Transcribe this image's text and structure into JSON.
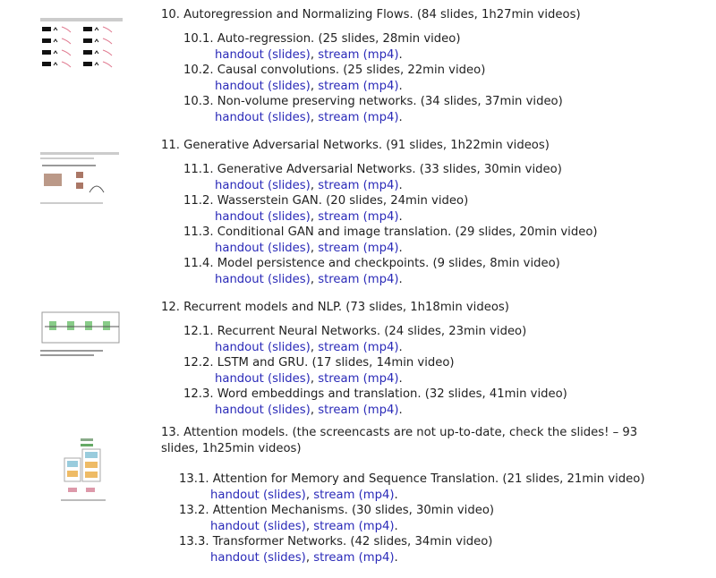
{
  "link_labels": {
    "handout": "handout (slides)",
    "stream": "stream (mp4)",
    "sep": ", ",
    "end": "."
  },
  "link_color": "#2a2ab8",
  "sections": [
    {
      "title": "10. Autoregression and Normalizing Flows. (84 slides, 1h27min videos)",
      "thumbnail": "autoregression-figure",
      "items": [
        {
          "label": "10.1. Auto-regression. (25 slides, 28min video)"
        },
        {
          "label": "10.2. Causal convolutions. (25 slides, 22min video)"
        },
        {
          "label": "10.3. Non-volume preserving networks. (34 slides, 37min video)"
        }
      ]
    },
    {
      "title": "11. Generative Adversarial Networks. (91 slides, 1h22min videos)",
      "thumbnail": "gan-figure",
      "items": [
        {
          "label": "11.1. Generative Adversarial Networks. (33 slides, 30min video)"
        },
        {
          "label": "11.2. Wasserstein GAN. (20 slides, 24min video)"
        },
        {
          "label": "11.3. Conditional GAN and image translation. (29 slides, 20min video)"
        },
        {
          "label": "11.4. Model persistence and checkpoints. (9 slides, 8min video)"
        }
      ]
    },
    {
      "title": "12. Recurrent models and NLP. (73 slides, 1h18min videos)",
      "thumbnail": "rnn-figure",
      "items": [
        {
          "label": "12.1. Recurrent Neural Networks. (24 slides, 23min video)"
        },
        {
          "label": "12.2. LSTM and GRU. (17 slides, 14min video)"
        },
        {
          "label": "12.3. Word embeddings and translation. (32 slides, 41min video)"
        }
      ]
    },
    {
      "title": "13. Attention models. (the screencasts are not up-to-date, check the slides! – 93 slides, 1h25min videos)",
      "thumbnail": "transformer-figure",
      "items": [
        {
          "label": "13.1. Attention for Memory and Sequence Translation. (21 slides, 21min video)"
        },
        {
          "label": "13.2. Attention Mechanisms. (30 slides, 30min video)"
        },
        {
          "label": "13.3. Transformer Networks. (42 slides, 34min video)"
        }
      ]
    }
  ]
}
